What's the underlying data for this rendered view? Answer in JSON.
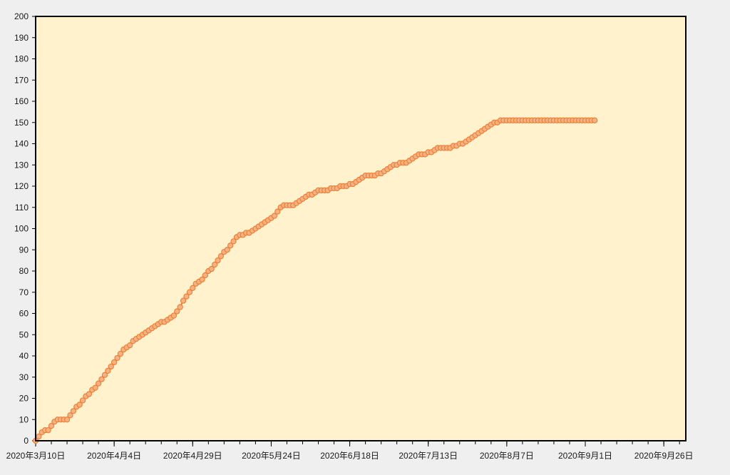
{
  "colors": {
    "page_background": "#efefef",
    "plot_background": "#fff2cc",
    "plot_border": "#000000",
    "series_line": "#ed7d31",
    "marker_fill": "#f4b183"
  },
  "chart_data": {
    "type": "line",
    "title": "",
    "xlabel": "",
    "ylabel": "",
    "grid": false,
    "legend": "none",
    "ylim": [
      0,
      200
    ],
    "xlim": [
      "2020-03-10",
      "2020-10-03"
    ],
    "y_ticks": [
      "200",
      "190",
      "180",
      "170",
      "160",
      "150",
      "140",
      "130",
      "120",
      "110",
      "100",
      "90",
      "80",
      "70",
      "60",
      "50",
      "40",
      "30",
      "20",
      "10",
      "0"
    ],
    "x_ticks": [
      {
        "date": "2020-03-10",
        "label": "2020年3月10日"
      },
      {
        "date": "2020-04-04",
        "label": "2020年4月4日"
      },
      {
        "date": "2020-04-29",
        "label": "2020年4月29日"
      },
      {
        "date": "2020-05-24",
        "label": "2020年5月24日"
      },
      {
        "date": "2020-06-18",
        "label": "2020年6月18日"
      },
      {
        "date": "2020-07-13",
        "label": "2020年7月13日"
      },
      {
        "date": "2020-08-07",
        "label": "2020年8月7日"
      },
      {
        "date": "2020-09-01",
        "label": "2020年9月1日"
      },
      {
        "date": "2020-09-26",
        "label": "2020年9月26日"
      }
    ],
    "series": [
      {
        "start_date": "2020-03-10",
        "step": "1 day",
        "values": [
          0,
          2,
          4,
          5,
          5,
          7,
          9,
          10,
          10,
          10,
          10,
          12,
          14,
          16,
          17,
          19,
          21,
          22,
          24,
          25,
          27,
          29,
          31,
          33,
          35,
          37,
          39,
          41,
          43,
          44,
          45,
          47,
          48,
          49,
          50,
          51,
          52,
          53,
          54,
          55,
          56,
          56,
          57,
          58,
          59,
          61,
          63,
          66,
          68,
          70,
          72,
          74,
          75,
          76,
          78,
          80,
          81,
          83,
          85,
          87,
          89,
          90,
          92,
          94,
          96,
          97,
          97,
          98,
          98,
          99,
          100,
          101,
          102,
          103,
          104,
          105,
          106,
          108,
          110,
          111,
          111,
          111,
          111,
          112,
          113,
          114,
          115,
          116,
          116,
          117,
          118,
          118,
          118,
          118,
          119,
          119,
          119,
          120,
          120,
          120,
          121,
          121,
          122,
          123,
          124,
          125,
          125,
          125,
          125,
          126,
          126,
          127,
          128,
          129,
          130,
          130,
          131,
          131,
          131,
          132,
          133,
          134,
          135,
          135,
          135,
          136,
          136,
          137,
          138,
          138,
          138,
          138,
          138,
          139,
          139,
          140,
          140,
          141,
          142,
          143,
          144,
          145,
          146,
          147,
          148,
          149,
          150,
          150,
          151,
          151,
          151,
          151,
          151,
          151,
          151,
          151,
          151,
          151,
          151,
          151,
          151,
          151,
          151,
          151,
          151,
          151,
          151,
          151,
          151,
          151,
          151,
          151,
          151,
          151,
          151,
          151,
          151,
          151,
          151
        ]
      }
    ]
  }
}
